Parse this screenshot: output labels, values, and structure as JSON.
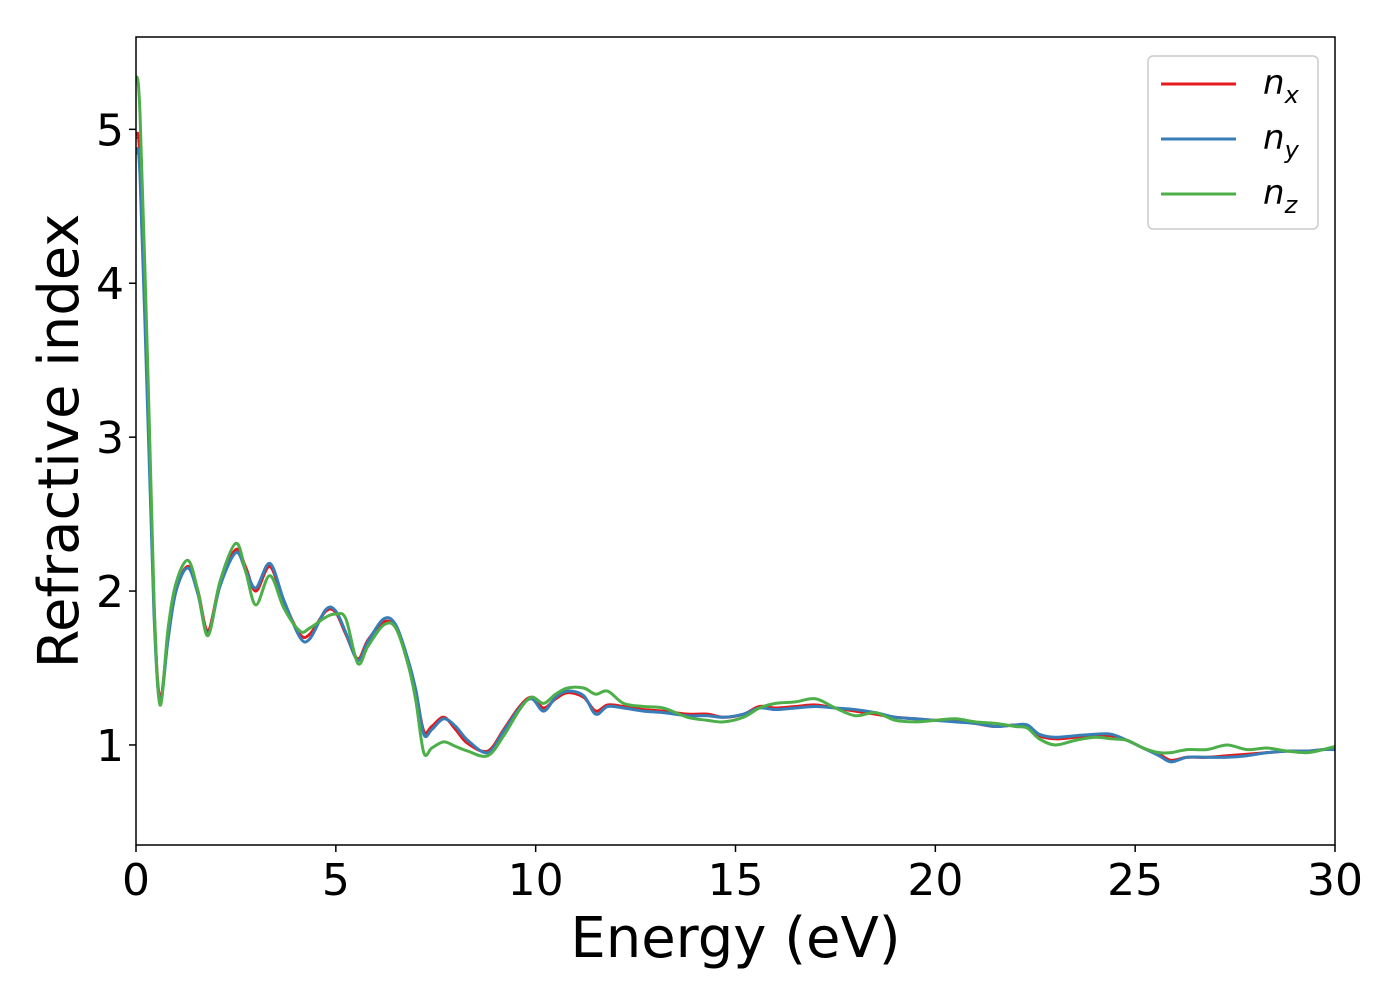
{
  "chart_data": {
    "type": "line",
    "title": "",
    "xlabel": "Energy (eV)",
    "ylabel": "Refractive index",
    "xlim": [
      0,
      30
    ],
    "ylim": [
      0.35,
      5.6
    ],
    "xticks": [
      0,
      5,
      10,
      15,
      20,
      25,
      30
    ],
    "yticks": [
      1,
      2,
      3,
      4,
      5
    ],
    "grid": false,
    "legend_position": "top-right",
    "series": [
      {
        "name": "n_x",
        "legend_base": "n",
        "legend_sub": "x",
        "color": "#e41a1c",
        "x": [
          0.0,
          0.1,
          0.3,
          0.45,
          0.6,
          0.8,
          1.0,
          1.3,
          1.55,
          1.8,
          2.1,
          2.5,
          2.75,
          3.0,
          3.35,
          3.7,
          4.1,
          4.35,
          4.75,
          5.0,
          5.25,
          5.55,
          5.8,
          6.2,
          6.5,
          6.8,
          7.0,
          7.2,
          7.4,
          7.7,
          8.0,
          8.3,
          8.8,
          9.2,
          9.6,
          9.9,
          10.2,
          10.5,
          10.8,
          11.2,
          11.5,
          11.8,
          12.2,
          12.7,
          13.2,
          13.8,
          14.3,
          14.7,
          15.2,
          15.6,
          16.0,
          16.5,
          17.0,
          17.5,
          18.0,
          18.5,
          19.0,
          19.5,
          20.0,
          20.5,
          21.0,
          21.5,
          22.0,
          22.3,
          22.6,
          23.0,
          23.5,
          24.0,
          24.4,
          24.8,
          25.2,
          25.6,
          25.9,
          26.3,
          26.8,
          27.3,
          27.8,
          28.3,
          28.8,
          29.3,
          29.7,
          30.0
        ],
        "y": [
          4.95,
          4.8,
          3.2,
          1.9,
          1.3,
          1.7,
          2.0,
          2.16,
          2.0,
          1.74,
          2.05,
          2.27,
          2.15,
          2.0,
          2.16,
          1.93,
          1.72,
          1.72,
          1.87,
          1.86,
          1.72,
          1.56,
          1.68,
          1.8,
          1.76,
          1.55,
          1.35,
          1.09,
          1.12,
          1.18,
          1.1,
          1.01,
          0.96,
          1.1,
          1.25,
          1.31,
          1.24,
          1.3,
          1.34,
          1.31,
          1.22,
          1.26,
          1.25,
          1.23,
          1.22,
          1.2,
          1.2,
          1.18,
          1.2,
          1.25,
          1.24,
          1.25,
          1.26,
          1.24,
          1.22,
          1.2,
          1.18,
          1.17,
          1.16,
          1.16,
          1.14,
          1.12,
          1.13,
          1.12,
          1.06,
          1.04,
          1.05,
          1.06,
          1.06,
          1.03,
          0.98,
          0.94,
          0.9,
          0.92,
          0.92,
          0.93,
          0.94,
          0.95,
          0.96,
          0.96,
          0.97,
          0.98
        ]
      },
      {
        "name": "n_y",
        "legend_base": "n",
        "legend_sub": "y",
        "color": "#377eb8",
        "x": [
          0.0,
          0.1,
          0.3,
          0.45,
          0.6,
          0.8,
          1.0,
          1.3,
          1.55,
          1.8,
          2.1,
          2.5,
          2.75,
          3.0,
          3.35,
          3.7,
          4.1,
          4.35,
          4.75,
          5.0,
          5.25,
          5.55,
          5.8,
          6.2,
          6.5,
          6.8,
          7.0,
          7.2,
          7.4,
          7.7,
          8.0,
          8.3,
          8.8,
          9.2,
          9.6,
          9.9,
          10.2,
          10.5,
          10.8,
          11.2,
          11.5,
          11.8,
          12.2,
          12.7,
          13.2,
          13.8,
          14.3,
          14.7,
          15.2,
          15.6,
          16.0,
          16.5,
          17.0,
          17.5,
          18.0,
          18.5,
          19.0,
          19.5,
          20.0,
          20.5,
          21.0,
          21.5,
          22.0,
          22.3,
          22.6,
          23.0,
          23.5,
          24.0,
          24.4,
          24.8,
          25.2,
          25.6,
          25.9,
          26.3,
          26.8,
          27.3,
          27.8,
          28.3,
          28.8,
          29.3,
          29.7,
          30.0
        ],
        "y": [
          4.85,
          4.7,
          3.1,
          1.85,
          1.28,
          1.68,
          2.0,
          2.15,
          1.98,
          1.72,
          2.03,
          2.25,
          2.13,
          2.02,
          2.18,
          1.94,
          1.7,
          1.69,
          1.88,
          1.87,
          1.73,
          1.55,
          1.67,
          1.82,
          1.78,
          1.56,
          1.36,
          1.07,
          1.1,
          1.17,
          1.12,
          1.03,
          0.95,
          1.09,
          1.24,
          1.3,
          1.22,
          1.31,
          1.35,
          1.32,
          1.2,
          1.25,
          1.24,
          1.22,
          1.21,
          1.19,
          1.19,
          1.18,
          1.2,
          1.24,
          1.23,
          1.24,
          1.25,
          1.24,
          1.23,
          1.21,
          1.18,
          1.17,
          1.16,
          1.15,
          1.14,
          1.12,
          1.13,
          1.13,
          1.07,
          1.05,
          1.06,
          1.07,
          1.07,
          1.03,
          0.98,
          0.93,
          0.89,
          0.92,
          0.92,
          0.92,
          0.93,
          0.95,
          0.96,
          0.96,
          0.97,
          0.97
        ]
      },
      {
        "name": "n_z",
        "legend_base": "n",
        "legend_sub": "z",
        "color": "#4daf4a",
        "x": [
          0.0,
          0.1,
          0.3,
          0.45,
          0.6,
          0.8,
          1.0,
          1.3,
          1.55,
          1.8,
          2.1,
          2.5,
          2.75,
          3.0,
          3.35,
          3.7,
          4.1,
          4.35,
          4.75,
          5.0,
          5.25,
          5.55,
          5.8,
          6.2,
          6.5,
          6.8,
          7.0,
          7.2,
          7.4,
          7.7,
          8.0,
          8.3,
          8.8,
          9.2,
          9.6,
          9.9,
          10.2,
          10.5,
          10.8,
          11.2,
          11.5,
          11.8,
          12.2,
          12.7,
          13.2,
          13.8,
          14.3,
          14.7,
          15.2,
          15.6,
          16.0,
          16.5,
          17.0,
          17.5,
          18.0,
          18.5,
          19.0,
          19.5,
          20.0,
          20.5,
          21.0,
          21.5,
          22.0,
          22.3,
          22.6,
          23.0,
          23.5,
          24.0,
          24.4,
          24.8,
          25.2,
          25.6,
          25.9,
          26.3,
          26.8,
          27.3,
          27.8,
          28.3,
          28.8,
          29.3,
          29.7,
          30.0
        ],
        "y": [
          5.35,
          5.1,
          3.4,
          1.95,
          1.26,
          1.75,
          2.05,
          2.2,
          2.0,
          1.71,
          2.06,
          2.31,
          2.12,
          1.91,
          2.1,
          1.89,
          1.74,
          1.76,
          1.83,
          1.85,
          1.82,
          1.53,
          1.64,
          1.78,
          1.76,
          1.53,
          1.29,
          0.95,
          0.98,
          1.02,
          0.99,
          0.96,
          0.93,
          1.06,
          1.23,
          1.31,
          1.27,
          1.33,
          1.37,
          1.37,
          1.33,
          1.35,
          1.27,
          1.25,
          1.24,
          1.18,
          1.16,
          1.15,
          1.18,
          1.24,
          1.27,
          1.28,
          1.3,
          1.24,
          1.19,
          1.21,
          1.16,
          1.15,
          1.16,
          1.17,
          1.15,
          1.14,
          1.12,
          1.11,
          1.04,
          1.0,
          1.03,
          1.05,
          1.04,
          1.03,
          0.98,
          0.95,
          0.95,
          0.97,
          0.97,
          1.0,
          0.97,
          0.98,
          0.96,
          0.95,
          0.97,
          0.99
        ]
      }
    ]
  }
}
